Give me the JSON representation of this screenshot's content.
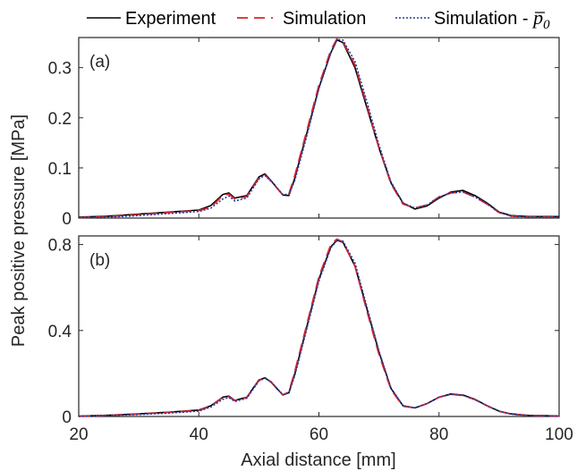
{
  "legend": {
    "experiment": "Experiment",
    "simulation": "Simulation",
    "simulation_p0_prefix": "Simulation - ",
    "simulation_p0_symbol": "p",
    "simulation_p0_subscript": "0"
  },
  "xlabel": "Axial distance [mm]",
  "ylabel": "Peak positive pressure [MPa]",
  "colors": {
    "experiment": "#000000",
    "simulation": "#d7262b",
    "simulation_p0": "#2b3a9c",
    "axes": "#262626"
  },
  "chart_data": [
    {
      "type": "line",
      "panel": "(a)",
      "xlim": [
        20,
        100
      ],
      "ylim": [
        0,
        0.36
      ],
      "xticks": [
        20,
        40,
        60,
        80,
        100
      ],
      "yticks": [
        0,
        0.1,
        0.2,
        0.3
      ],
      "ytick_labels": [
        "0",
        "0.1",
        "0.2",
        "0.3"
      ],
      "grid": false,
      "legend_position": "top, outside",
      "series": [
        {
          "name": "Experiment",
          "x": [
            20,
            25,
            30,
            35,
            40,
            42,
            44,
            45,
            46,
            48,
            50,
            51,
            52,
            54,
            55,
            56,
            58,
            60,
            62,
            63,
            64,
            66,
            68,
            70,
            72,
            74,
            76,
            78,
            80,
            82,
            84,
            86,
            88,
            90,
            92,
            95,
            100
          ],
          "y": [
            0.002,
            0.004,
            0.008,
            0.012,
            0.016,
            0.025,
            0.047,
            0.05,
            0.04,
            0.045,
            0.082,
            0.088,
            0.075,
            0.046,
            0.045,
            0.08,
            0.17,
            0.26,
            0.33,
            0.355,
            0.35,
            0.3,
            0.22,
            0.14,
            0.07,
            0.03,
            0.018,
            0.024,
            0.04,
            0.052,
            0.055,
            0.045,
            0.03,
            0.012,
            0.005,
            0.003,
            0.003
          ]
        },
        {
          "name": "Simulation",
          "x": [
            20,
            25,
            30,
            35,
            40,
            42,
            44,
            45,
            46,
            48,
            50,
            51,
            52,
            54,
            55,
            56,
            58,
            60,
            62,
            63,
            64,
            66,
            68,
            70,
            72,
            74,
            76,
            78,
            80,
            82,
            84,
            86,
            88,
            90,
            92,
            95,
            100
          ],
          "y": [
            0.001,
            0.003,
            0.007,
            0.011,
            0.015,
            0.022,
            0.045,
            0.048,
            0.038,
            0.043,
            0.08,
            0.086,
            0.074,
            0.046,
            0.048,
            0.085,
            0.175,
            0.265,
            0.335,
            0.357,
            0.352,
            0.305,
            0.225,
            0.14,
            0.068,
            0.028,
            0.02,
            0.026,
            0.042,
            0.05,
            0.052,
            0.042,
            0.028,
            0.011,
            0.004,
            0.002,
            0.002
          ]
        },
        {
          "name": "Simulation - p0",
          "x": [
            20,
            25,
            30,
            35,
            40,
            42,
            44,
            45,
            46,
            48,
            50,
            51,
            52,
            54,
            55,
            56,
            58,
            60,
            62,
            63,
            64,
            66,
            68,
            70,
            72,
            74,
            76,
            78,
            80,
            82,
            84,
            86,
            88,
            90,
            92,
            95,
            100
          ],
          "y": [
            0.001,
            0.002,
            0.005,
            0.009,
            0.013,
            0.02,
            0.038,
            0.044,
            0.034,
            0.04,
            0.078,
            0.085,
            0.074,
            0.047,
            0.047,
            0.075,
            0.165,
            0.258,
            0.33,
            0.356,
            0.355,
            0.312,
            0.232,
            0.146,
            0.072,
            0.03,
            0.02,
            0.026,
            0.042,
            0.05,
            0.052,
            0.042,
            0.028,
            0.011,
            0.004,
            0.002,
            0.002
          ]
        }
      ]
    },
    {
      "type": "line",
      "panel": "(b)",
      "xlim": [
        20,
        100
      ],
      "ylim": [
        0,
        0.84
      ],
      "xticks": [
        20,
        40,
        60,
        80,
        100
      ],
      "yticks": [
        0,
        0.4,
        0.8
      ],
      "ytick_labels": [
        "0",
        "0.4",
        "0.8"
      ],
      "grid": false,
      "series": [
        {
          "name": "Experiment",
          "x": [
            20,
            25,
            30,
            35,
            40,
            42,
            44,
            45,
            46,
            48,
            50,
            51,
            52,
            54,
            55,
            56,
            58,
            60,
            62,
            63,
            64,
            66,
            68,
            70,
            72,
            74,
            76,
            78,
            80,
            82,
            84,
            86,
            88,
            90,
            92,
            95,
            100
          ],
          "y": [
            0.002,
            0.006,
            0.012,
            0.02,
            0.03,
            0.05,
            0.09,
            0.095,
            0.075,
            0.09,
            0.17,
            0.18,
            0.16,
            0.1,
            0.11,
            0.2,
            0.42,
            0.64,
            0.79,
            0.82,
            0.81,
            0.7,
            0.5,
            0.3,
            0.13,
            0.05,
            0.04,
            0.06,
            0.09,
            0.105,
            0.1,
            0.08,
            0.05,
            0.025,
            0.012,
            0.005,
            0.003
          ]
        },
        {
          "name": "Simulation",
          "x": [
            20,
            25,
            30,
            35,
            40,
            42,
            44,
            45,
            46,
            48,
            50,
            51,
            52,
            54,
            55,
            56,
            58,
            60,
            62,
            63,
            64,
            66,
            68,
            70,
            72,
            74,
            76,
            78,
            80,
            82,
            84,
            86,
            88,
            90,
            92,
            95,
            100
          ],
          "y": [
            0.001,
            0.005,
            0.011,
            0.019,
            0.028,
            0.048,
            0.088,
            0.092,
            0.073,
            0.088,
            0.168,
            0.18,
            0.162,
            0.1,
            0.115,
            0.21,
            0.43,
            0.65,
            0.8,
            0.825,
            0.812,
            0.7,
            0.49,
            0.29,
            0.125,
            0.048,
            0.04,
            0.06,
            0.09,
            0.103,
            0.098,
            0.078,
            0.05,
            0.024,
            0.011,
            0.004,
            0.002
          ]
        },
        {
          "name": "Simulation - p0",
          "x": [
            20,
            25,
            30,
            35,
            40,
            42,
            44,
            45,
            46,
            48,
            50,
            51,
            52,
            54,
            55,
            56,
            58,
            60,
            62,
            63,
            64,
            66,
            68,
            70,
            72,
            74,
            76,
            78,
            80,
            82,
            84,
            86,
            88,
            90,
            92,
            95,
            100
          ],
          "y": [
            0.001,
            0.004,
            0.009,
            0.016,
            0.025,
            0.044,
            0.08,
            0.088,
            0.07,
            0.085,
            0.165,
            0.178,
            0.162,
            0.102,
            0.11,
            0.19,
            0.41,
            0.63,
            0.785,
            0.818,
            0.816,
            0.715,
            0.51,
            0.305,
            0.132,
            0.05,
            0.04,
            0.06,
            0.09,
            0.103,
            0.098,
            0.078,
            0.05,
            0.024,
            0.011,
            0.004,
            0.002
          ]
        }
      ]
    }
  ]
}
